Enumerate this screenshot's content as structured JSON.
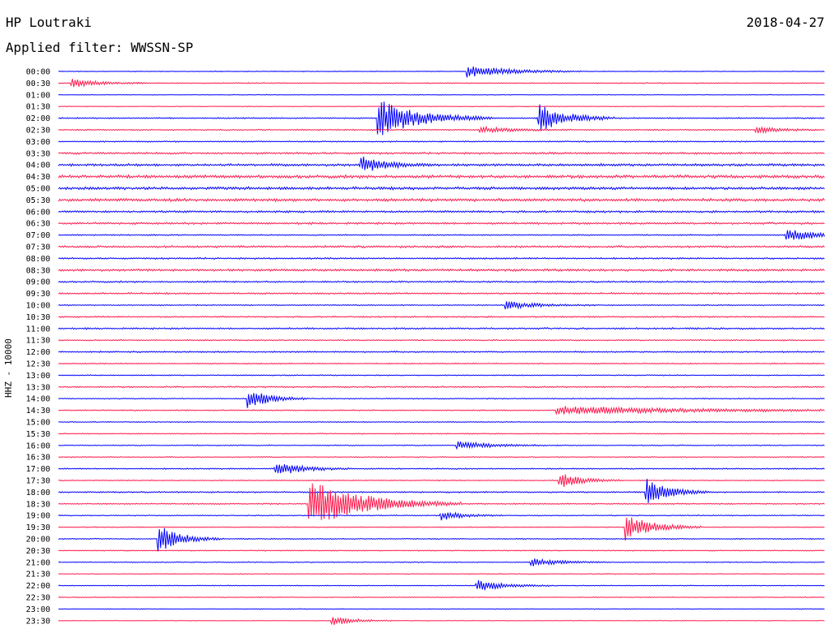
{
  "header": {
    "station": "HP Loutraki",
    "date": "2018-04-27",
    "filter": "Applied filter: WWSSN-SP"
  },
  "colors": {
    "even_row": "#0000ff",
    "odd_row": "#ff1a4d",
    "background": "#ffffff"
  },
  "chart_data": {
    "type": "line",
    "title": "HP Loutraki",
    "subtitle": "Applied filter: WWSSN-SP",
    "ylabel": "HHZ - 10000",
    "xlabel": "",
    "grid": false,
    "legend": "none",
    "row_minutes": 30,
    "row_labels": [
      "00:00",
      "00:30",
      "01:00",
      "01:30",
      "02:00",
      "02:30",
      "03:00",
      "03:30",
      "04:00",
      "04:30",
      "05:00",
      "05:30",
      "06:00",
      "06:30",
      "07:00",
      "07:30",
      "08:00",
      "08:30",
      "09:00",
      "09:30",
      "10:00",
      "10:30",
      "11:00",
      "11:30",
      "12:00",
      "12:30",
      "13:00",
      "13:30",
      "14:00",
      "14:30",
      "15:00",
      "15:30",
      "16:00",
      "16:30",
      "17:00",
      "17:30",
      "18:00",
      "18:30",
      "19:00",
      "19:30",
      "20:00",
      "20:30",
      "21:00",
      "21:30",
      "22:00",
      "22:30",
      "23:00",
      "23:30"
    ],
    "noise_levels": [
      0.4,
      0.5,
      0.3,
      0.4,
      0.6,
      0.6,
      0.6,
      1.0,
      1.2,
      1.5,
      1.4,
      1.4,
      1.0,
      1.0,
      0.6,
      1.0,
      0.8,
      1.1,
      0.8,
      0.8,
      0.5,
      0.7,
      0.8,
      0.6,
      0.7,
      0.6,
      0.5,
      0.7,
      0.5,
      0.6,
      0.4,
      0.5,
      0.5,
      0.5,
      0.6,
      0.5,
      0.7,
      0.6,
      0.5,
      0.5,
      0.5,
      0.5,
      0.5,
      0.4,
      0.4,
      0.4,
      0.4,
      0.3
    ],
    "events": [
      {
        "row": 0,
        "minute": 16.0,
        "amplitude": 8,
        "duration": 1.5
      },
      {
        "row": 1,
        "minute": 0.5,
        "amplitude": 5,
        "duration": 1.0
      },
      {
        "row": 4,
        "minute": 12.5,
        "amplitude": 24,
        "duration": 1.5
      },
      {
        "row": 4,
        "minute": 18.8,
        "amplitude": 18,
        "duration": 1.0
      },
      {
        "row": 5,
        "minute": 16.5,
        "amplitude": 4,
        "duration": 1.2
      },
      {
        "row": 5,
        "minute": 27.3,
        "amplitude": 5,
        "duration": 0.8
      },
      {
        "row": 8,
        "minute": 11.8,
        "amplitude": 10,
        "duration": 1.0
      },
      {
        "row": 14,
        "minute": 28.5,
        "amplitude": 7,
        "duration": 1.5
      },
      {
        "row": 20,
        "minute": 17.5,
        "amplitude": 5,
        "duration": 1.2
      },
      {
        "row": 28,
        "minute": 7.4,
        "amplitude": 14,
        "duration": 0.8
      },
      {
        "row": 29,
        "minute": 19.5,
        "amplitude": 5,
        "duration": 5.0
      },
      {
        "row": 32,
        "minute": 15.6,
        "amplitude": 5,
        "duration": 1.2
      },
      {
        "row": 34,
        "minute": 8.5,
        "amplitude": 9,
        "duration": 1.0
      },
      {
        "row": 35,
        "minute": 19.6,
        "amplitude": 10,
        "duration": 0.8
      },
      {
        "row": 36,
        "minute": 23.0,
        "amplitude": 18,
        "duration": 0.8
      },
      {
        "row": 37,
        "minute": 9.8,
        "amplitude": 30,
        "duration": 2.0
      },
      {
        "row": 38,
        "minute": 15.0,
        "amplitude": 6,
        "duration": 0.8
      },
      {
        "row": 39,
        "minute": 22.2,
        "amplitude": 16,
        "duration": 1.0
      },
      {
        "row": 40,
        "minute": 3.9,
        "amplitude": 18,
        "duration": 0.8
      },
      {
        "row": 42,
        "minute": 18.5,
        "amplitude": 5,
        "duration": 1.0
      },
      {
        "row": 44,
        "minute": 16.4,
        "amplitude": 7,
        "duration": 1.0
      },
      {
        "row": 47,
        "minute": 10.7,
        "amplitude": 6,
        "duration": 0.8
      }
    ]
  }
}
